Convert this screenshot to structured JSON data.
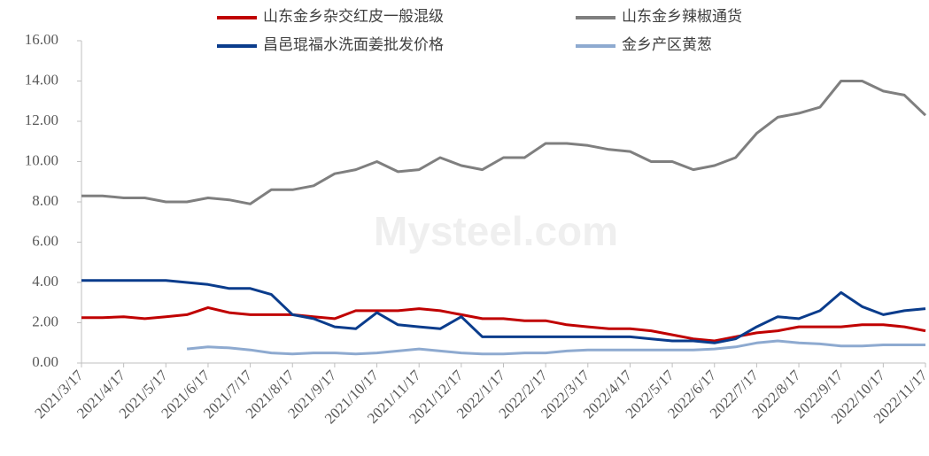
{
  "chart_data": {
    "type": "line",
    "watermark": "Mysteel.com",
    "categories": [
      "2021/3/17",
      null,
      "2021/4/17",
      null,
      "2021/5/17",
      null,
      "2021/6/17",
      null,
      "2021/7/17",
      null,
      "2021/8/17",
      null,
      "2021/9/17",
      null,
      "2021/10/17",
      null,
      "2021/11/17",
      null,
      "2021/12/17",
      null,
      "2022/1/17",
      null,
      "2022/2/17",
      null,
      "2022/3/17",
      null,
      "2022/4/17",
      null,
      "2022/5/17",
      null,
      "2022/6/17",
      null,
      "2022/7/17",
      null,
      "2022/8/17",
      null,
      "2022/9/17",
      null,
      "2022/10/17",
      null,
      "2022/11/17"
    ],
    "series": [
      {
        "name": "山东金乡杂交红皮一般混级",
        "color": "#c00000",
        "values": [
          2.25,
          2.25,
          2.3,
          2.2,
          2.3,
          2.4,
          2.75,
          2.5,
          2.4,
          2.4,
          2.4,
          2.3,
          2.2,
          2.6,
          2.6,
          2.6,
          2.7,
          2.6,
          2.4,
          2.2,
          2.2,
          2.1,
          2.1,
          1.9,
          1.8,
          1.7,
          1.7,
          1.6,
          1.4,
          1.2,
          1.1,
          1.3,
          1.5,
          1.6,
          1.8,
          1.8,
          1.8,
          1.9,
          1.9,
          1.8,
          1.6
        ]
      },
      {
        "name": "山东金乡辣椒通货",
        "color": "#7f7f7f",
        "values": [
          8.3,
          8.3,
          8.2,
          8.2,
          8.0,
          8.0,
          8.2,
          8.1,
          7.9,
          8.6,
          8.6,
          8.8,
          9.4,
          9.6,
          10.0,
          9.5,
          9.6,
          10.2,
          9.8,
          9.6,
          10.2,
          10.2,
          10.9,
          10.9,
          10.8,
          10.6,
          10.5,
          10.0,
          10.0,
          9.6,
          9.8,
          10.2,
          11.4,
          12.2,
          12.4,
          12.7,
          14.0,
          14.0,
          13.5,
          13.3,
          12.3
        ]
      },
      {
        "name": "昌邑琨福水洗面姜批发价格",
        "color": "#0a3c8c",
        "values": [
          4.1,
          4.1,
          4.1,
          4.1,
          4.1,
          4.0,
          3.9,
          3.7,
          3.7,
          3.4,
          2.4,
          2.2,
          1.8,
          1.7,
          2.5,
          1.9,
          1.8,
          1.7,
          2.3,
          1.3,
          1.3,
          1.3,
          1.3,
          1.3,
          1.3,
          1.3,
          1.3,
          1.2,
          1.1,
          1.1,
          1.0,
          1.2,
          1.8,
          2.3,
          2.2,
          2.6,
          3.5,
          2.8,
          2.4,
          2.6,
          2.7
        ]
      },
      {
        "name": "金乡产区黄葱",
        "color": "#8eaad0",
        "values": [
          null,
          null,
          null,
          null,
          null,
          0.7,
          0.8,
          0.75,
          0.65,
          0.5,
          0.45,
          0.5,
          0.5,
          0.45,
          0.5,
          0.6,
          0.7,
          0.6,
          0.5,
          0.45,
          0.45,
          0.5,
          0.5,
          0.6,
          0.65,
          0.65,
          0.65,
          0.65,
          0.65,
          0.65,
          0.7,
          0.8,
          1.0,
          1.1,
          1.0,
          0.95,
          0.85,
          0.85,
          0.9,
          0.9,
          0.9
        ]
      }
    ],
    "ylim": [
      0,
      16
    ],
    "yticks": [
      {
        "value": 0,
        "label": "0.00"
      },
      {
        "value": 2,
        "label": "2.00"
      },
      {
        "value": 4,
        "label": "4.00"
      },
      {
        "value": 6,
        "label": "6.00"
      },
      {
        "value": 8,
        "label": "8.00"
      },
      {
        "value": 10,
        "label": "10.00"
      },
      {
        "value": 12,
        "label": "12.00"
      },
      {
        "value": 14,
        "label": "14.00"
      },
      {
        "value": 16,
        "label": "16.00"
      }
    ],
    "grid": false
  }
}
